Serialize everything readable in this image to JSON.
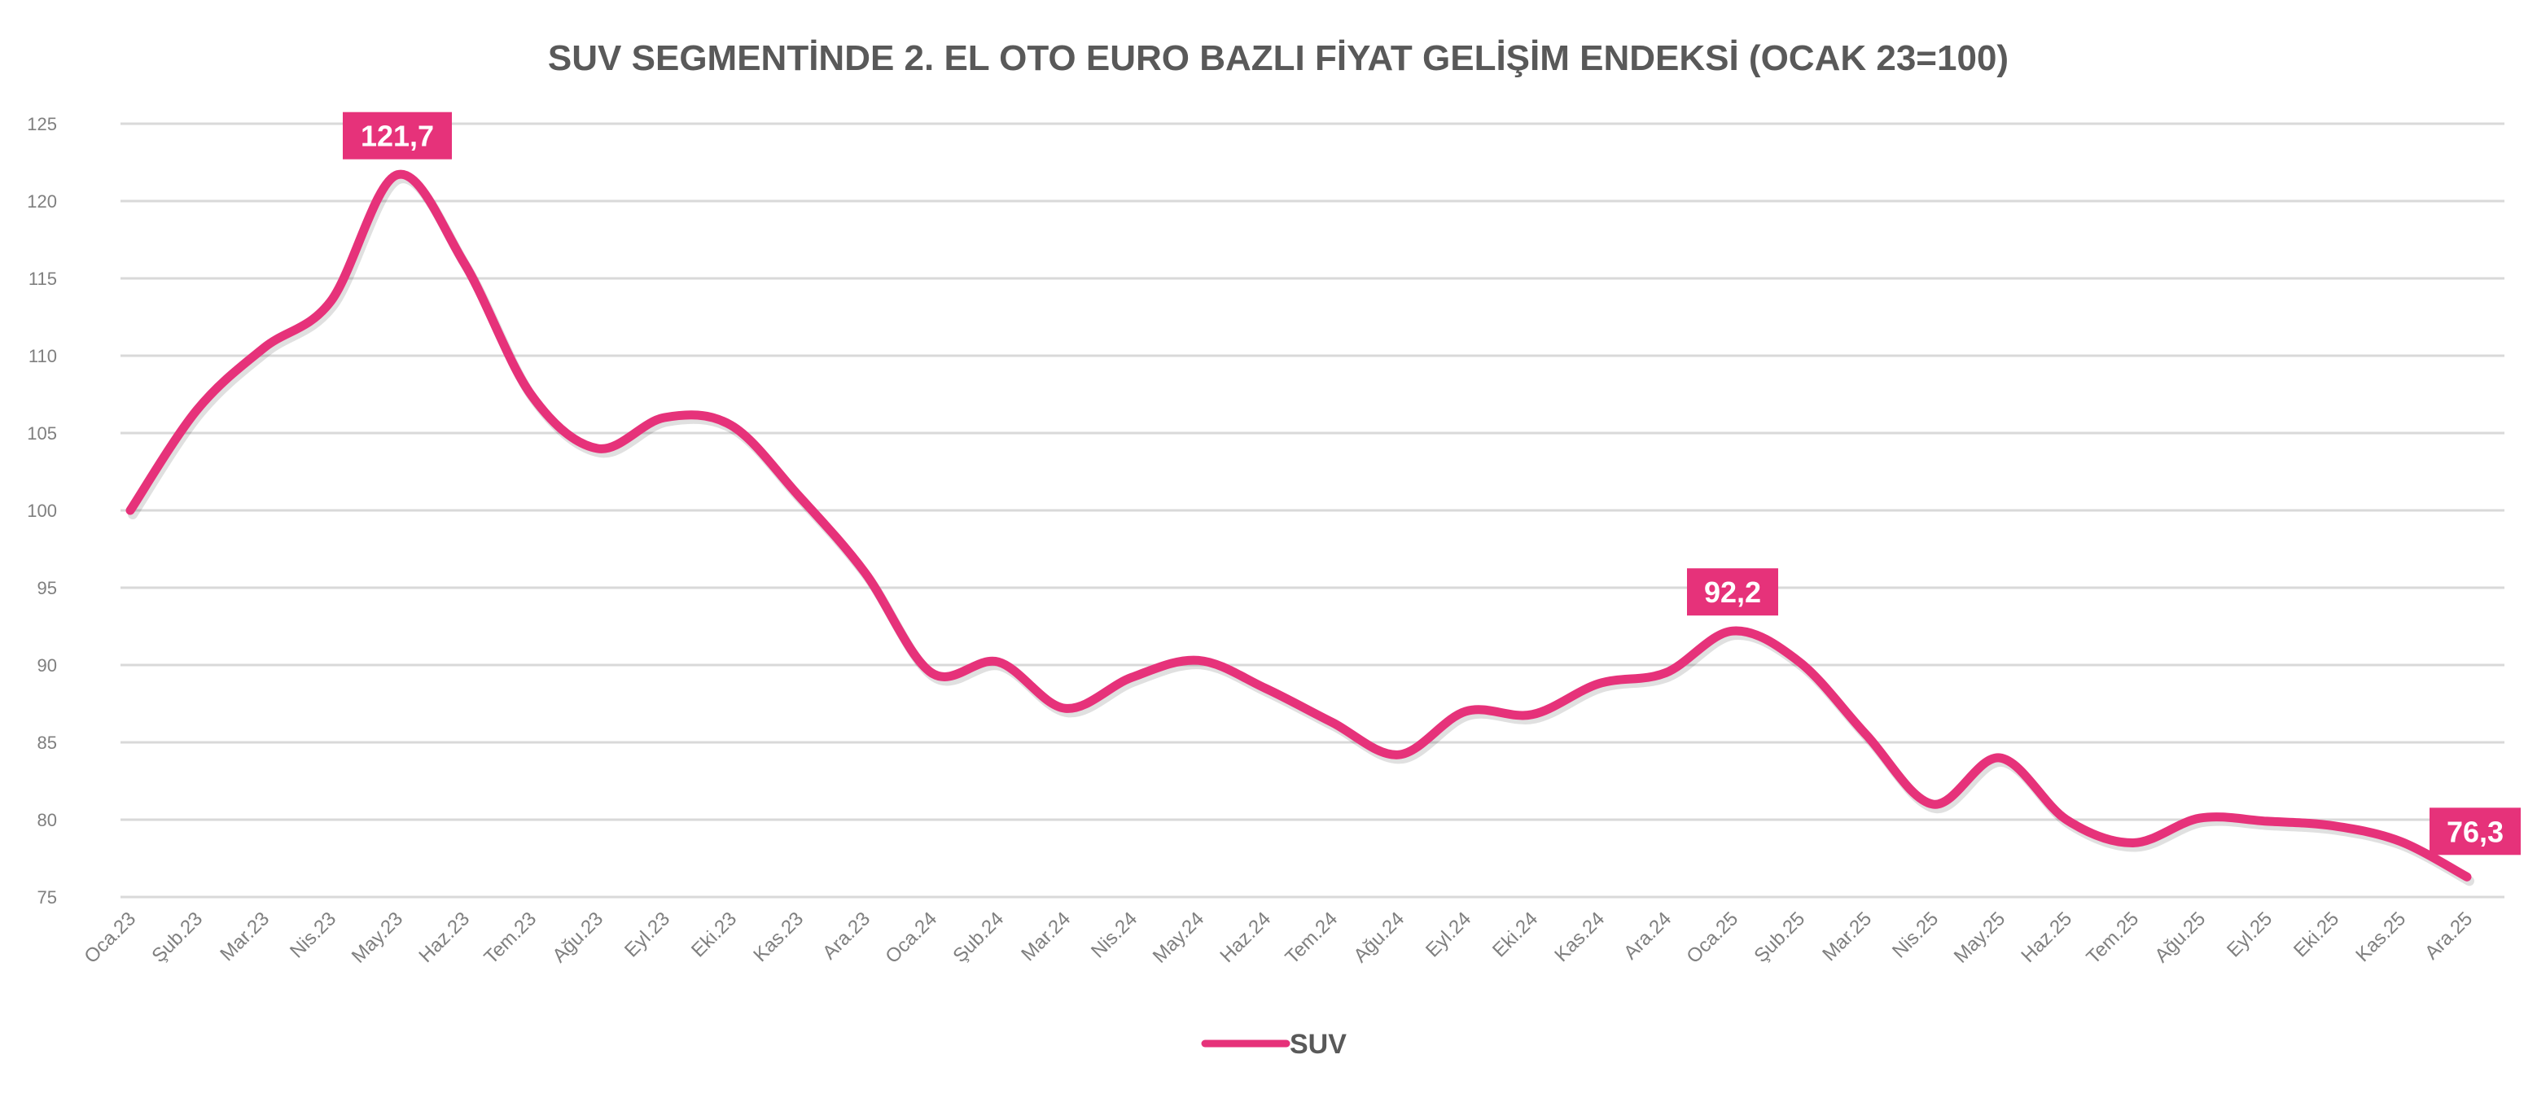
{
  "chart_data": {
    "type": "line",
    "title": "SUV SEGMENTİNDE 2. EL OTO EURO BAZLI FİYAT GELİŞİM ENDEKSİ (OCAK 23=100)",
    "xlabel": "",
    "ylabel": "",
    "ylim": [
      75,
      125
    ],
    "yticks": [
      75,
      80,
      85,
      90,
      95,
      100,
      105,
      110,
      115,
      120,
      125
    ],
    "grid": true,
    "legend_position": "bottom",
    "smooth": true,
    "categories": [
      "Oca.23",
      "Şub.23",
      "Mar.23",
      "Nis.23",
      "May.23",
      "Haz.23",
      "Tem.23",
      "Ağu.23",
      "Eyl.23",
      "Eki.23",
      "Kas.23",
      "Ara.23",
      "Oca.24",
      "Şub.24",
      "Mar.24",
      "Nis.24",
      "May.24",
      "Haz.24",
      "Tem.24",
      "Ağu.24",
      "Eyl.24",
      "Eki.24",
      "Kas.24",
      "Ara.24",
      "Oca.25",
      "Şub.25",
      "Mar.25",
      "Nis.25",
      "May.25",
      "Haz.25",
      "Tem.25",
      "Ağu.25",
      "Eyl.25",
      "Eki.25",
      "Kas.25",
      "Ara.25"
    ],
    "series": [
      {
        "name": "SUV",
        "color": "#E6327A",
        "values": [
          100,
          106.5,
          110.5,
          113.5,
          121.7,
          116,
          107.5,
          104,
          106,
          105.5,
          101,
          96,
          89.5,
          90.2,
          87.2,
          89.2,
          90.3,
          88.5,
          86.3,
          84.2,
          87,
          86.8,
          88.8,
          89.5,
          92.2,
          90.2,
          85.5,
          81,
          84,
          80,
          78.5,
          80.1,
          79.9,
          79.6,
          78.6,
          76.3
        ]
      }
    ],
    "data_labels": [
      {
        "category": "May.23",
        "value": 121.7,
        "text": "121,7"
      },
      {
        "category": "Oca.25",
        "value": 92.2,
        "text": "92,2"
      },
      {
        "category": "Ara.25",
        "value": 76.3,
        "text": "76,3"
      }
    ]
  }
}
